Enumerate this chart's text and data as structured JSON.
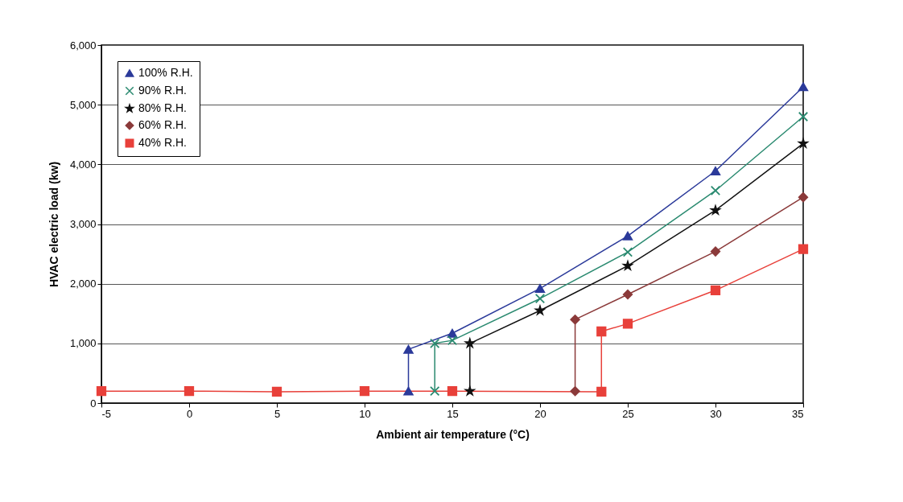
{
  "chart_data": {
    "type": "line",
    "xlabel": "Ambient air temperature (°C)",
    "ylabel": "HVAC electric load (kw)",
    "xlim": [
      -5,
      35
    ],
    "xticks": [
      {
        "value": -5,
        "label": "-5"
      },
      0,
      5,
      10,
      15,
      20,
      25,
      30,
      35
    ],
    "ylim": [
      0,
      6000
    ],
    "yticks": [
      0,
      {
        "value": 1000,
        "label": "1,000"
      },
      {
        "value": 2000,
        "label": "2,000"
      },
      {
        "value": 3000,
        "label": "3,000"
      },
      {
        "value": 4000,
        "label": "4,000"
      },
      {
        "value": 5000,
        "label": "5,000"
      },
      {
        "value": 6000,
        "label": "6,000"
      }
    ],
    "grid": "y",
    "legend": "top left",
    "line_style": "solid",
    "series": [
      {
        "name": "100% R.H.",
        "color": "#2b3a9a",
        "marker": "triangle",
        "x": [
          12.5,
          12.5,
          15,
          20,
          25,
          30,
          35
        ],
        "values": [
          200,
          900,
          1170,
          1920,
          2800,
          3890,
          5300
        ]
      },
      {
        "name": "90% R.H.",
        "color": "#2a8a70",
        "marker": "cross",
        "x": [
          14,
          14,
          15,
          20,
          25,
          30,
          35
        ],
        "values": [
          200,
          1000,
          1050,
          1750,
          2530,
          3560,
          4800
        ]
      },
      {
        "name": "80% R.H.",
        "color": "#111111",
        "marker": "star",
        "x": [
          16,
          16,
          20,
          25,
          30,
          35
        ],
        "values": [
          200,
          1000,
          1550,
          2300,
          3230,
          4350
        ]
      },
      {
        "name": "60% R.H.",
        "color": "#8b3a3a",
        "marker": "diamond",
        "x": [
          22,
          22,
          25,
          30,
          35
        ],
        "values": [
          200,
          1400,
          1820,
          2540,
          3450
        ]
      },
      {
        "name": "40% R.H.",
        "color": "#e8403a",
        "marker": "square",
        "x": [
          -5,
          0,
          5,
          10,
          15,
          23.5,
          23.5,
          25,
          30,
          35
        ],
        "values": [
          200,
          200,
          190,
          200,
          200,
          190,
          1200,
          1330,
          1890,
          2580
        ]
      }
    ]
  }
}
